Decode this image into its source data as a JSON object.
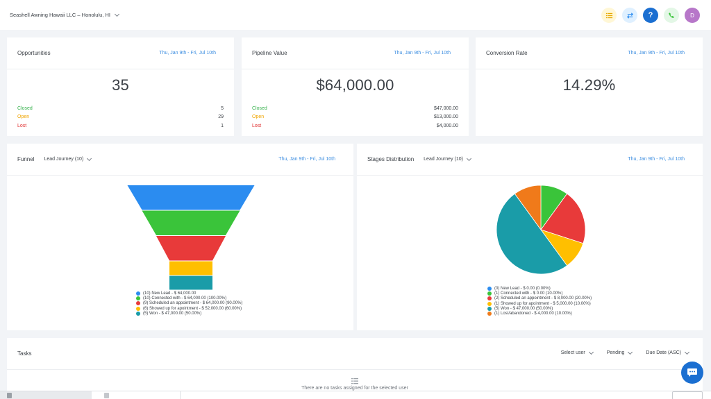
{
  "header": {
    "company": "Seashell Awning Hawaii LLC – Honolulu, HI",
    "avatar_letter": "D"
  },
  "cards": {
    "opportunities": {
      "title": "Opportunities",
      "date": "Thu, Jan 9th - Fri, Jul 10th",
      "value": "35",
      "rows": [
        {
          "label": "Closed",
          "value": "5",
          "color": "#37b24d"
        },
        {
          "label": "Open",
          "value": "29",
          "color": "#f0a500"
        },
        {
          "label": "Lost",
          "value": "1",
          "color": "#e03131"
        }
      ]
    },
    "pipeline": {
      "title": "Pipeline Value",
      "date": "Thu, Jan 9th - Fri, Jul 10th",
      "value": "$64,000.00",
      "rows": [
        {
          "label": "Closed",
          "value": "$47,000.00",
          "color": "#37b24d"
        },
        {
          "label": "Open",
          "value": "$13,000.00",
          "color": "#f0a500"
        },
        {
          "label": "Lost",
          "value": "$4,000.00",
          "color": "#e03131"
        }
      ]
    },
    "conversion": {
      "title": "Conversion Rate",
      "date": "Thu, Jan 9th - Fri, Jul 10th",
      "value": "14.29%"
    }
  },
  "funnel": {
    "title": "Funnel",
    "dropdown": "Lead Journey (10)",
    "date": "Thu, Jan 9th - Fri, Jul 10th",
    "legend": [
      {
        "text": "(10) New Lead - $ 64,000.00",
        "color": "#2b8cf0"
      },
      {
        "text": "(10) Connected with - $ 64,000.00 (100.00%)",
        "color": "#3ac43a"
      },
      {
        "text": "(9) Scheduled an appointment - $ 64,000.00 (90.00%)",
        "color": "#e83a3a"
      },
      {
        "text": "(6) Showed up for apointment - $ 52,000.00 (60.00%)",
        "color": "#ffbf00"
      },
      {
        "text": "(5) Won - $ 47,000.00 (50.00%)",
        "color": "#1a9ca8"
      }
    ]
  },
  "stages": {
    "title": "Stages Distribution",
    "dropdown": "Lead Journey (10)",
    "date": "Thu, Jan 9th - Fri, Jul 10th",
    "legend": [
      {
        "text": "(0) New Lead - $ 0.00 (0.00%)",
        "color": "#2b8cf0"
      },
      {
        "text": "(1) Connected with - $ 0.00 (10.00%)",
        "color": "#3ac43a"
      },
      {
        "text": "(2) Scheduled an appointment - $ 8,000.00 (20.00%)",
        "color": "#e83a3a"
      },
      {
        "text": "(1) Showed up for apointment - $ 5,000.00 (10.00%)",
        "color": "#ffbf00"
      },
      {
        "text": "(5) Won - $ 47,000.00 (50.00%)",
        "color": "#1a9ca8"
      },
      {
        "text": "(1) Lost/abandoned - $ 4,000.00 (10.00%)",
        "color": "#f07a1a"
      }
    ]
  },
  "chart_data": [
    {
      "type": "funnel",
      "categories": [
        "New Lead",
        "Connected with",
        "Scheduled an appointment",
        "Showed up for apointment",
        "Won"
      ],
      "values": [
        10,
        10,
        9,
        6,
        5
      ],
      "colors": [
        "#2b8cf0",
        "#3ac43a",
        "#e83a3a",
        "#ffbf00",
        "#1a9ca8"
      ]
    },
    {
      "type": "pie",
      "categories": [
        "Connected with",
        "Scheduled an appointment",
        "Showed up for apointment",
        "Won",
        "Lost/abandoned"
      ],
      "values": [
        1,
        2,
        1,
        5,
        1
      ],
      "colors": [
        "#3ac43a",
        "#e83a3a",
        "#ffbf00",
        "#1a9ca8",
        "#f07a1a"
      ]
    }
  ],
  "tasks": {
    "title": "Tasks",
    "filters": [
      "Select user",
      "Pending",
      "Due Date (ASC)"
    ],
    "empty": "There are no tasks assigned for the selected user"
  }
}
